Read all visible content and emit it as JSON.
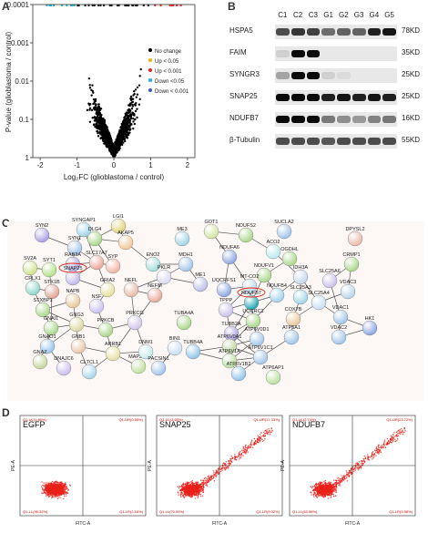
{
  "panels": {
    "a": {
      "letter": "A"
    },
    "b": {
      "letter": "B"
    },
    "c": {
      "letter": "C"
    },
    "d": {
      "letter": "D"
    }
  },
  "volcano": {
    "xlabel": "Log₂FC (glioblastoma / control)",
    "ylabel": "P-value (glioblastoma / control)",
    "x_ticks": [
      "-2",
      "-1",
      "0",
      "1",
      "2"
    ],
    "y_ticks": [
      "0.0001",
      "0.001",
      "0.01",
      "0.1",
      "1"
    ],
    "legend": [
      {
        "label": "No change",
        "color": "#000000"
      },
      {
        "label": "Up < 0.05",
        "color": "#f5b400"
      },
      {
        "label": "Up < 0.001",
        "color": "#e8221a"
      },
      {
        "label": "Down <0.05",
        "color": "#1fb0e6"
      },
      {
        "label": "Down < 0.001",
        "color": "#3a55c8"
      }
    ]
  },
  "western": {
    "lanes": [
      "C1",
      "C2",
      "C3",
      "G1",
      "G2",
      "G3",
      "G4",
      "G5"
    ],
    "bands": [
      {
        "name": "HSPA5",
        "kd": "78KD"
      },
      {
        "name": "FAIM",
        "kd": "35KD"
      },
      {
        "name": "SYNGR3",
        "kd": "25KD"
      },
      {
        "name": "SNAP25",
        "kd": "25KD"
      },
      {
        "name": "NDUFB7",
        "kd": "16KD"
      },
      {
        "name": "β-Tubulin",
        "kd": "55KD"
      }
    ]
  },
  "network": {
    "nodes": [
      {
        "label": "SYN2",
        "color": "#a89ee0"
      },
      {
        "label": "SYNGAP1",
        "color": "#9fd4e6"
      },
      {
        "label": "LGI1",
        "color": "#e0d27a"
      },
      {
        "label": "DLG4",
        "color": "#a9d68a"
      },
      {
        "label": "AKAP5",
        "color": "#f1c79a"
      },
      {
        "label": "SYN1",
        "color": "#a0c4ea"
      },
      {
        "label": "SV2A",
        "color": "#cfe28a"
      },
      {
        "label": "SYT1",
        "color": "#b4e08a"
      },
      {
        "label": "RAB3A",
        "color": "#a9a2e2"
      },
      {
        "label": "SLC17A7",
        "color": "#e9a69a"
      },
      {
        "label": "SYP",
        "color": "#f2b3a4"
      },
      {
        "label": "SNAP25",
        "color": "#bfb5ea"
      },
      {
        "label": "CPLX1",
        "color": "#8fd4c8"
      },
      {
        "label": "STX1B",
        "color": "#e0a08c"
      },
      {
        "label": "GRIA2",
        "color": "#e6e09a"
      },
      {
        "label": "STXBP1",
        "color": "#a9d68a"
      },
      {
        "label": "NAPB",
        "color": "#e6c89a"
      },
      {
        "label": "NSF",
        "color": "#c7bff0"
      },
      {
        "label": "GNAI1",
        "color": "#a9d68a"
      },
      {
        "label": "GNG3",
        "color": "#dcd8a0"
      },
      {
        "label": "PRKCB",
        "color": "#a9d68a"
      },
      {
        "label": "PRKCG",
        "color": "#d2c4ea"
      },
      {
        "label": "GNAO1",
        "color": "#98c4ea"
      },
      {
        "label": "GNB1",
        "color": "#e9c6a8"
      },
      {
        "label": "GNAZ",
        "color": "#c6d6a0"
      },
      {
        "label": "DNAJC6",
        "color": "#c9bdee"
      },
      {
        "label": "CLTCL1",
        "color": "#a9d6ea"
      },
      {
        "label": "ARRB1",
        "color": "#e6e0a0"
      },
      {
        "label": "MAP2K1",
        "color": "#bfe0a0"
      },
      {
        "label": "DNM1",
        "color": "#c8ecef"
      },
      {
        "label": "BIN1",
        "color": "#c8dff2"
      },
      {
        "label": "PACSIN1",
        "color": "#a0c4ea"
      },
      {
        "label": "ENO2",
        "color": "#a0ddd9"
      },
      {
        "label": "PKLR",
        "color": "#d9d9f0"
      },
      {
        "label": "NEFL",
        "color": "#e6b9a4"
      },
      {
        "label": "NEFM",
        "color": "#e9a69a"
      },
      {
        "label": "ME3",
        "color": "#9fd4e6"
      },
      {
        "label": "MDH1",
        "color": "#a0c4ea"
      },
      {
        "label": "ME1",
        "color": "#b9bde8"
      },
      {
        "label": "GOT1",
        "color": "#d4e4a0"
      },
      {
        "label": "NDUFA6",
        "color": "#8ca4e0"
      },
      {
        "label": "NDUFS2",
        "color": "#a9d68a"
      },
      {
        "label": "SUCLA2",
        "color": "#a0c4ea"
      },
      {
        "label": "ACO2",
        "color": "#b9ecef"
      },
      {
        "label": "OGDHL",
        "color": "#a9d68a"
      },
      {
        "label": "UQCRFS1",
        "color": "#8ca4e0"
      },
      {
        "label": "NDUFV1",
        "color": "#a9d68a"
      },
      {
        "label": "IDH3A",
        "color": "#c6d6ec"
      },
      {
        "label": "MT-CO2",
        "color": "#b8d6ea"
      },
      {
        "label": "NDUFB7",
        "color": "#1aa3b0"
      },
      {
        "label": "NDUFB4",
        "color": "#a0d2ea"
      },
      {
        "label": "TPPP",
        "color": "#c9c0ea"
      },
      {
        "label": "UQCRC1",
        "color": "#a9d68a"
      },
      {
        "label": "TUBA4A",
        "color": "#a9d68a"
      },
      {
        "label": "TUBB2A",
        "color": "#a89ee0"
      },
      {
        "label": "TUBB4A",
        "color": "#8fc4e8"
      },
      {
        "label": "COX7B",
        "color": "#e6c89a"
      },
      {
        "label": "SLC25A3",
        "color": "#9fd4e6"
      },
      {
        "label": "SLC25A4",
        "color": "#c8dff2"
      },
      {
        "label": "SLC25A6",
        "color": "#c9c0ea"
      },
      {
        "label": "VDAC3",
        "color": "#b8d6ea"
      },
      {
        "label": "DPYSL2",
        "color": "#e9b8a8"
      },
      {
        "label": "CRMP1",
        "color": "#a9d68a"
      },
      {
        "label": "VDAC1",
        "color": "#a0c4ea"
      },
      {
        "label": "VDAC2",
        "color": "#a0c4ea"
      },
      {
        "label": "HK1",
        "color": "#8ca4e0"
      },
      {
        "label": "ATP5A1",
        "color": "#a0c4ea"
      },
      {
        "label": "ATP6V0D1",
        "color": "#a0c4ea"
      },
      {
        "label": "ATP6V0A1",
        "color": "#bfd4a0"
      },
      {
        "label": "ATP6V1A",
        "color": "#b9e0a0"
      },
      {
        "label": "ATP6V1C1",
        "color": "#a0c4ea"
      },
      {
        "label": "ATP6V1B2",
        "color": "#8fc4e8"
      },
      {
        "label": "ATP6AP1",
        "color": "#b9e0a0"
      }
    ],
    "highlighted": [
      "SNAP25",
      "NDUFB7"
    ]
  },
  "flow": {
    "plots": [
      {
        "title": "EGFP",
        "q1": "Q1-UL(1.86%)",
        "q2": "Q1-UR(0.65%)",
        "q3": "Q1-LL(95.32%)",
        "q4": "Q1-LR(2.16%)"
      },
      {
        "title": "SNAP25",
        "q1": "Q1-UL(3.65%)",
        "q2": "Q1-UR(17.33%)",
        "q3": "Q1-LL(70.00%)",
        "q4": "Q1-LR(9.02%)"
      },
      {
        "title": "NDUFB7",
        "q1": "Q1-UL(2.74%)",
        "q2": "Q1-UR(23.72%)",
        "q3": "Q1-LL(63.56%)",
        "q4": "Q1-LR(9.98%)"
      }
    ],
    "xlabel": "FITC-A",
    "ylabel": "PE-A",
    "color": "#e8221a"
  }
}
